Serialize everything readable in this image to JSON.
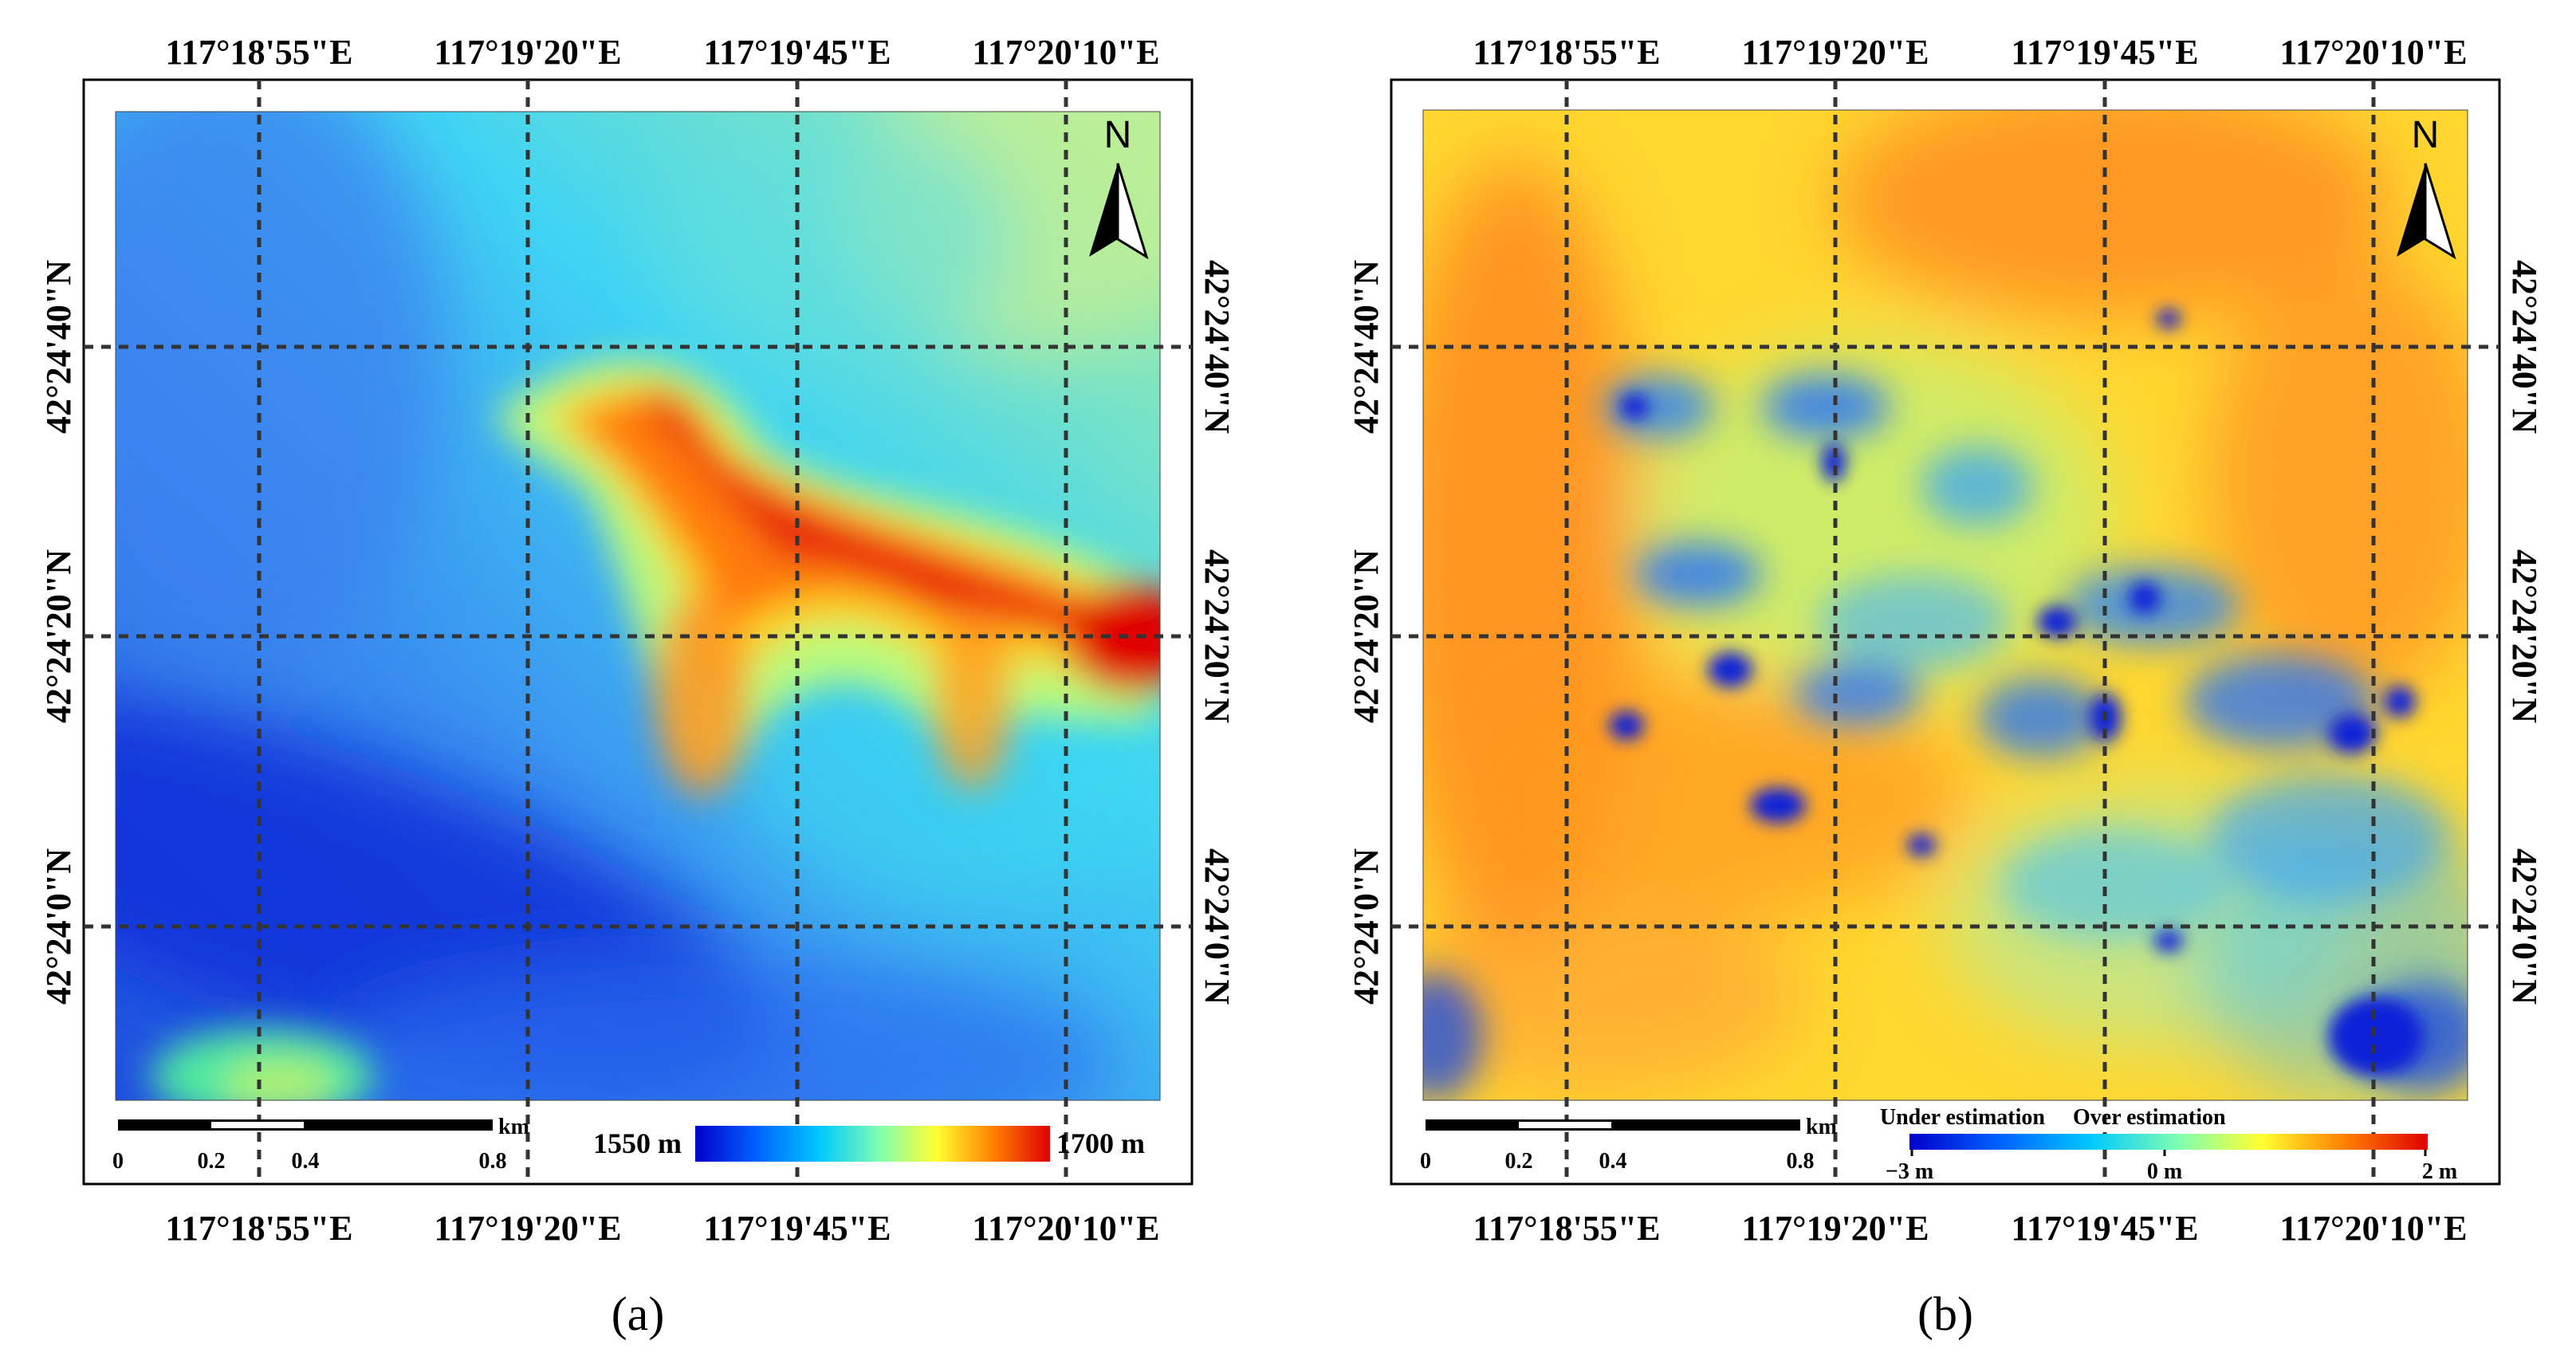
{
  "panels": [
    {
      "id": "a",
      "caption": "(a)",
      "lon_labels": [
        "117°18'55\"E",
        "117°19'20\"E",
        "117°19'45\"E",
        "117°20'10\"E"
      ],
      "lat_labels": [
        "42°24'40\"N",
        "42°24'20\"N",
        "42°24'0\"N"
      ],
      "north_arrow": "N",
      "scale_bar": {
        "unit": "km",
        "ticks": [
          "0",
          "0.2",
          "0.4",
          "0.8"
        ]
      },
      "legend": {
        "min_label": "1550 m",
        "max_label": "1700 m",
        "colors": [
          "#0000cc",
          "#0060ff",
          "#00c8ff",
          "#7fffb0",
          "#ffff30",
          "#ff8000",
          "#e00000"
        ]
      }
    },
    {
      "id": "b",
      "caption": "(b)",
      "lon_labels": [
        "117°18'55\"E",
        "117°19'20\"E",
        "117°19'45\"E",
        "117°20'10\"E"
      ],
      "lat_labels": [
        "42°24'40\"N",
        "42°24'20\"N",
        "42°24'0\"N"
      ],
      "north_arrow": "N",
      "scale_bar": {
        "unit": "km",
        "ticks": [
          "0",
          "0.2",
          "0.4",
          "0.8"
        ]
      },
      "legend": {
        "under_label": "Under estimation",
        "over_label": "Over estimation",
        "min_label": "−3 m",
        "mid_label": "0 m",
        "max_label": "2 m",
        "colors": [
          "#0000cc",
          "#0060ff",
          "#00c8ff",
          "#7fffb0",
          "#ffff30",
          "#ff8000",
          "#e00000"
        ]
      }
    }
  ]
}
